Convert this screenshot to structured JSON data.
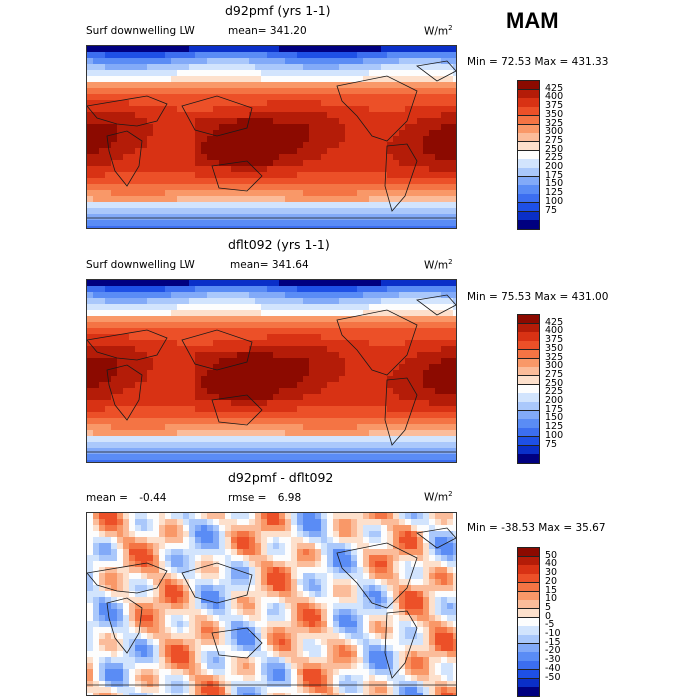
{
  "season": "MAM",
  "colors": {
    "lw_scale": [
      "#000080",
      "#0a2fc8",
      "#1e50e6",
      "#3c6ef0",
      "#5a8cf5",
      "#82aaf8",
      "#aac8fb",
      "#d2e4fd",
      "#fdfdfd",
      "#fde0cc",
      "#fbbc9a",
      "#f99868",
      "#f47444",
      "#ec5028",
      "#d83214",
      "#b41c08",
      "#8c0a00"
    ],
    "diff_scale": [
      "#000080",
      "#0a2fc8",
      "#1e50e6",
      "#3c6ef0",
      "#5a8cf5",
      "#82aaf8",
      "#aac8fb",
      "#d2e4fd",
      "#fdfdfd",
      "#fde0cc",
      "#fbbc9a",
      "#f99868",
      "#f47444",
      "#ec5028",
      "#d83214",
      "#b41c08",
      "#8c0a00"
    ],
    "coast": "#1a1a1a"
  },
  "chart_data": [
    {
      "type": "heatmap",
      "title": "d92pmf (yrs 1-1)",
      "variable": "Surf downwelling LW",
      "stat_label": "mean=",
      "stat_value": "341.20",
      "units": "W/m",
      "units_sup": "2",
      "min_max": "Min =  72.53 Max = 431.33",
      "min": 72.53,
      "max": 431.33,
      "colorbar_levels": [
        "425",
        "400",
        "375",
        "350",
        "325",
        "300",
        "275",
        "250",
        "225",
        "200",
        "175",
        "150",
        "125",
        "100",
        "75"
      ]
    },
    {
      "type": "heatmap",
      "title": "dflt092 (yrs 1-1)",
      "variable": "Surf downwelling LW",
      "stat_label": "mean=",
      "stat_value": "341.64",
      "units": "W/m",
      "units_sup": "2",
      "min_max": "Min =  75.53 Max = 431.00",
      "min": 75.53,
      "max": 431.0,
      "colorbar_levels": [
        "425",
        "400",
        "375",
        "350",
        "325",
        "300",
        "275",
        "250",
        "225",
        "200",
        "175",
        "150",
        "125",
        "100",
        "75"
      ]
    },
    {
      "type": "heatmap",
      "title": "d92pmf - dflt092",
      "mean_label": "mean =",
      "mean_value": "-0.44",
      "rmse_label": "rmse =",
      "rmse_value": "6.98",
      "units": "W/m",
      "units_sup": "2",
      "min_max": "Min = -38.53 Max =  35.67",
      "min": -38.53,
      "max": 35.67,
      "colorbar_levels": [
        "50",
        "40",
        "30",
        "20",
        "15",
        "10",
        "5",
        "0",
        "-5",
        "-10",
        "-15",
        "-20",
        "-30",
        "-40",
        "-50"
      ]
    }
  ]
}
